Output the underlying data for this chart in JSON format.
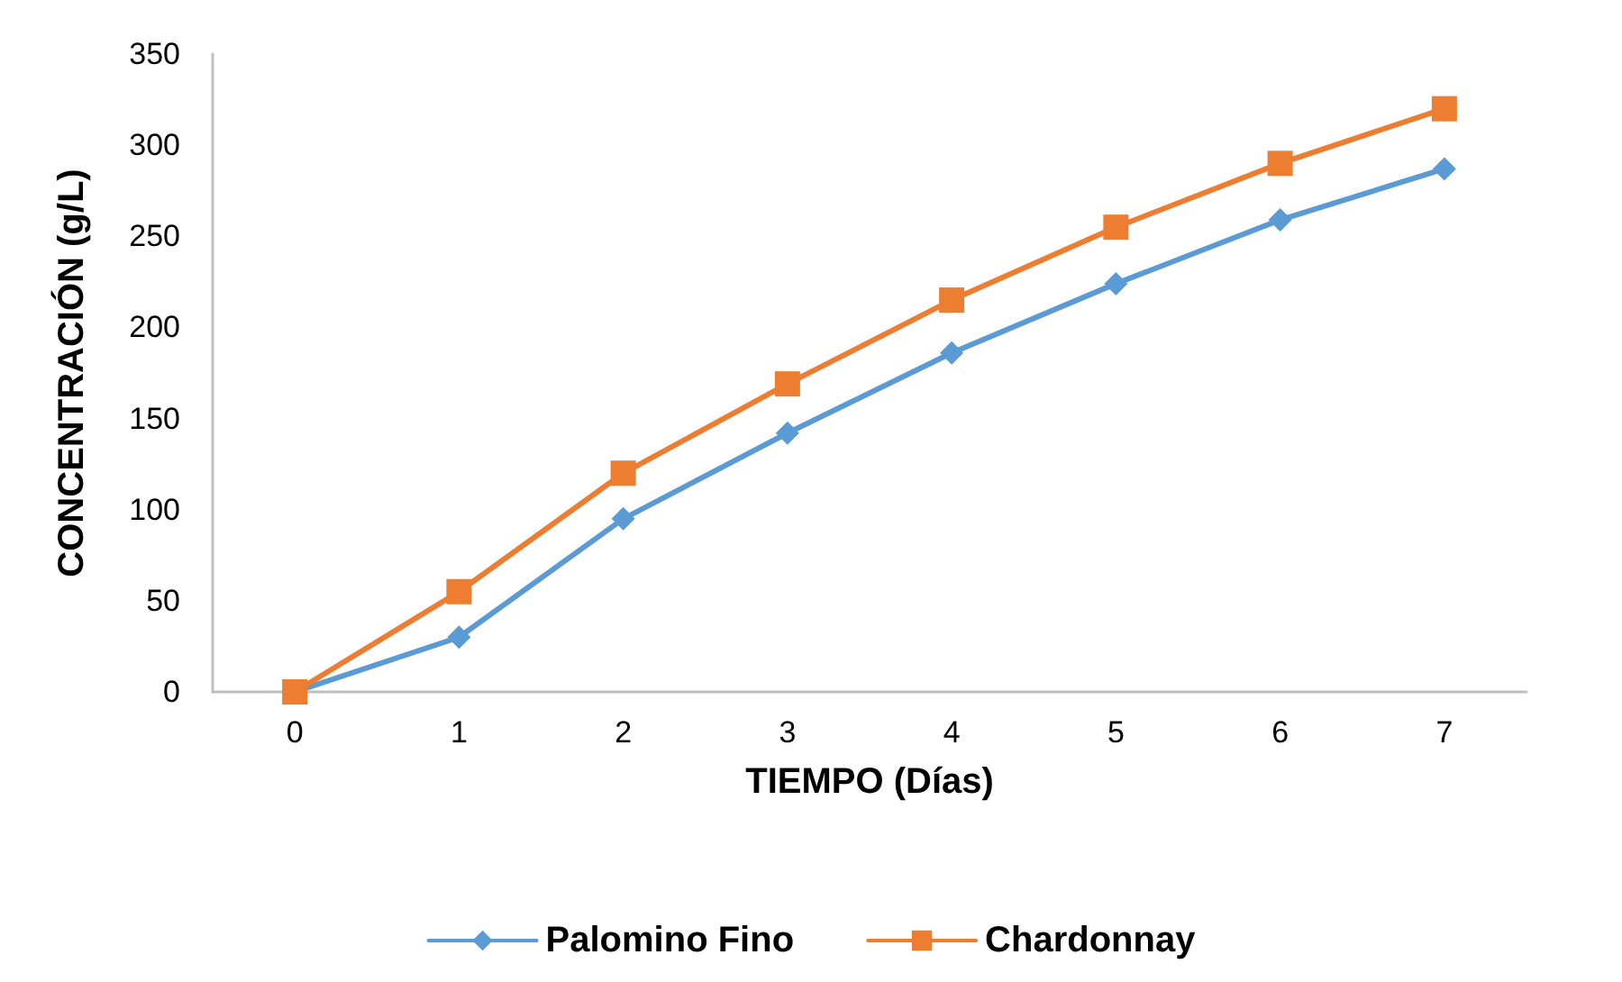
{
  "chart_data": {
    "type": "line",
    "xlabel": "TIEMPO (Días)",
    "ylabel": "CONCENTRACIÓN (g/L)",
    "categories": [
      "0",
      "1",
      "2",
      "3",
      "4",
      "5",
      "6",
      "7"
    ],
    "series": [
      {
        "name": "Palomino Fino",
        "color": "#5b9bd5",
        "marker": "diamond",
        "values": [
          0,
          30,
          95,
          142,
          186,
          224,
          259,
          287
        ]
      },
      {
        "name": "Chardonnay",
        "color": "#ed7d31",
        "marker": "square",
        "values": [
          0,
          55,
          120,
          169,
          215,
          255,
          290,
          320
        ]
      }
    ],
    "ylim": [
      0,
      350
    ],
    "yticks": [
      0,
      50,
      100,
      150,
      200,
      250,
      300,
      350
    ],
    "grid": false,
    "legend": "bottom",
    "line_style": "solid"
  }
}
